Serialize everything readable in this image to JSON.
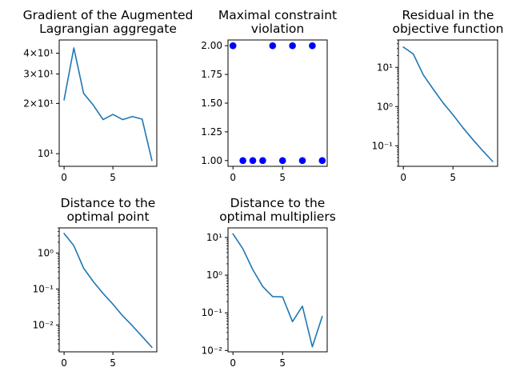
{
  "colors": {
    "line": "#1f77b4",
    "marker": "#0000ff",
    "axes": "#000000",
    "background": "#ffffff"
  },
  "chart_data": [
    {
      "type": "line",
      "title": [
        "Gradient of the Augmented",
        "Lagrangian aggregate"
      ],
      "x": [
        0,
        1,
        2,
        3,
        4,
        5,
        6,
        7,
        8,
        9
      ],
      "y": [
        21,
        43,
        23,
        19.5,
        16,
        17.2,
        16,
        16.7,
        16.1,
        9.1
      ],
      "yscale": "log",
      "xlim": [
        -0.5,
        9.5
      ],
      "ylim": [
        8.4,
        48
      ],
      "xticks": [
        0,
        5
      ],
      "xtick_labels": [
        "0",
        "5"
      ],
      "yticks": [
        10,
        20,
        30,
        40
      ],
      "ytick_labels": [
        "10¹",
        "2×10¹",
        "3×10¹",
        "4×10¹"
      ]
    },
    {
      "type": "scatter",
      "title": [
        "Maximal constraint",
        "violation"
      ],
      "x": [
        0,
        1,
        2,
        3,
        4,
        5,
        6,
        7,
        8,
        9
      ],
      "y": [
        2,
        1,
        1,
        1,
        2,
        1,
        2,
        1,
        2,
        1
      ],
      "yscale": "linear",
      "xlim": [
        -0.5,
        9.5
      ],
      "ylim": [
        0.95,
        2.05
      ],
      "xticks": [
        0,
        5
      ],
      "xtick_labels": [
        "0",
        "5"
      ],
      "yticks": [
        1.0,
        1.25,
        1.5,
        1.75,
        2.0
      ],
      "ytick_labels": [
        "1.00",
        "1.25",
        "1.50",
        "1.75",
        "2.00"
      ]
    },
    {
      "type": "line",
      "title": [
        "Residual in the",
        "objective function"
      ],
      "x": [
        0,
        1,
        2,
        3,
        4,
        5,
        6,
        7,
        8,
        9
      ],
      "y": [
        33,
        22,
        6.5,
        2.8,
        1.25,
        0.62,
        0.29,
        0.145,
        0.075,
        0.04
      ],
      "yscale": "log",
      "xlim": [
        -0.5,
        9.5
      ],
      "ylim": [
        0.03,
        50
      ],
      "xticks": [
        0,
        5
      ],
      "xtick_labels": [
        "0",
        "5"
      ],
      "yticks": [
        0.1,
        1,
        10
      ],
      "ytick_labels": [
        "10⁻¹",
        "10⁰",
        "10¹"
      ]
    },
    {
      "type": "line",
      "title": [
        "Distance to the",
        "optimal point"
      ],
      "x": [
        0,
        1,
        2,
        3,
        4,
        5,
        6,
        7,
        8,
        9
      ],
      "y": [
        3.5,
        1.6,
        0.38,
        0.16,
        0.075,
        0.038,
        0.018,
        0.0095,
        0.0048,
        0.0024
      ],
      "yscale": "log",
      "xlim": [
        -0.5,
        9.5
      ],
      "ylim": [
        0.0018,
        5
      ],
      "xticks": [
        0,
        5
      ],
      "xtick_labels": [
        "0",
        "5"
      ],
      "yticks": [
        0.01,
        0.1,
        1
      ],
      "ytick_labels": [
        "10⁻²",
        "10⁻¹",
        "10⁰"
      ]
    },
    {
      "type": "line",
      "title": [
        "Distance to the",
        "optimal multipliers"
      ],
      "x": [
        0,
        1,
        2,
        3,
        4,
        5,
        6,
        7,
        8,
        9
      ],
      "y": [
        12.5,
        5,
        1.4,
        0.5,
        0.27,
        0.265,
        0.058,
        0.15,
        0.0125,
        0.08
      ],
      "yscale": "log",
      "xlim": [
        -0.5,
        9.5
      ],
      "ylim": [
        0.0092,
        18
      ],
      "xticks": [
        0,
        5
      ],
      "xtick_labels": [
        "0",
        "5"
      ],
      "yticks": [
        0.01,
        0.1,
        1,
        10
      ],
      "ytick_labels": [
        "10⁻²",
        "10⁻¹",
        "10⁰",
        "10¹"
      ]
    }
  ]
}
